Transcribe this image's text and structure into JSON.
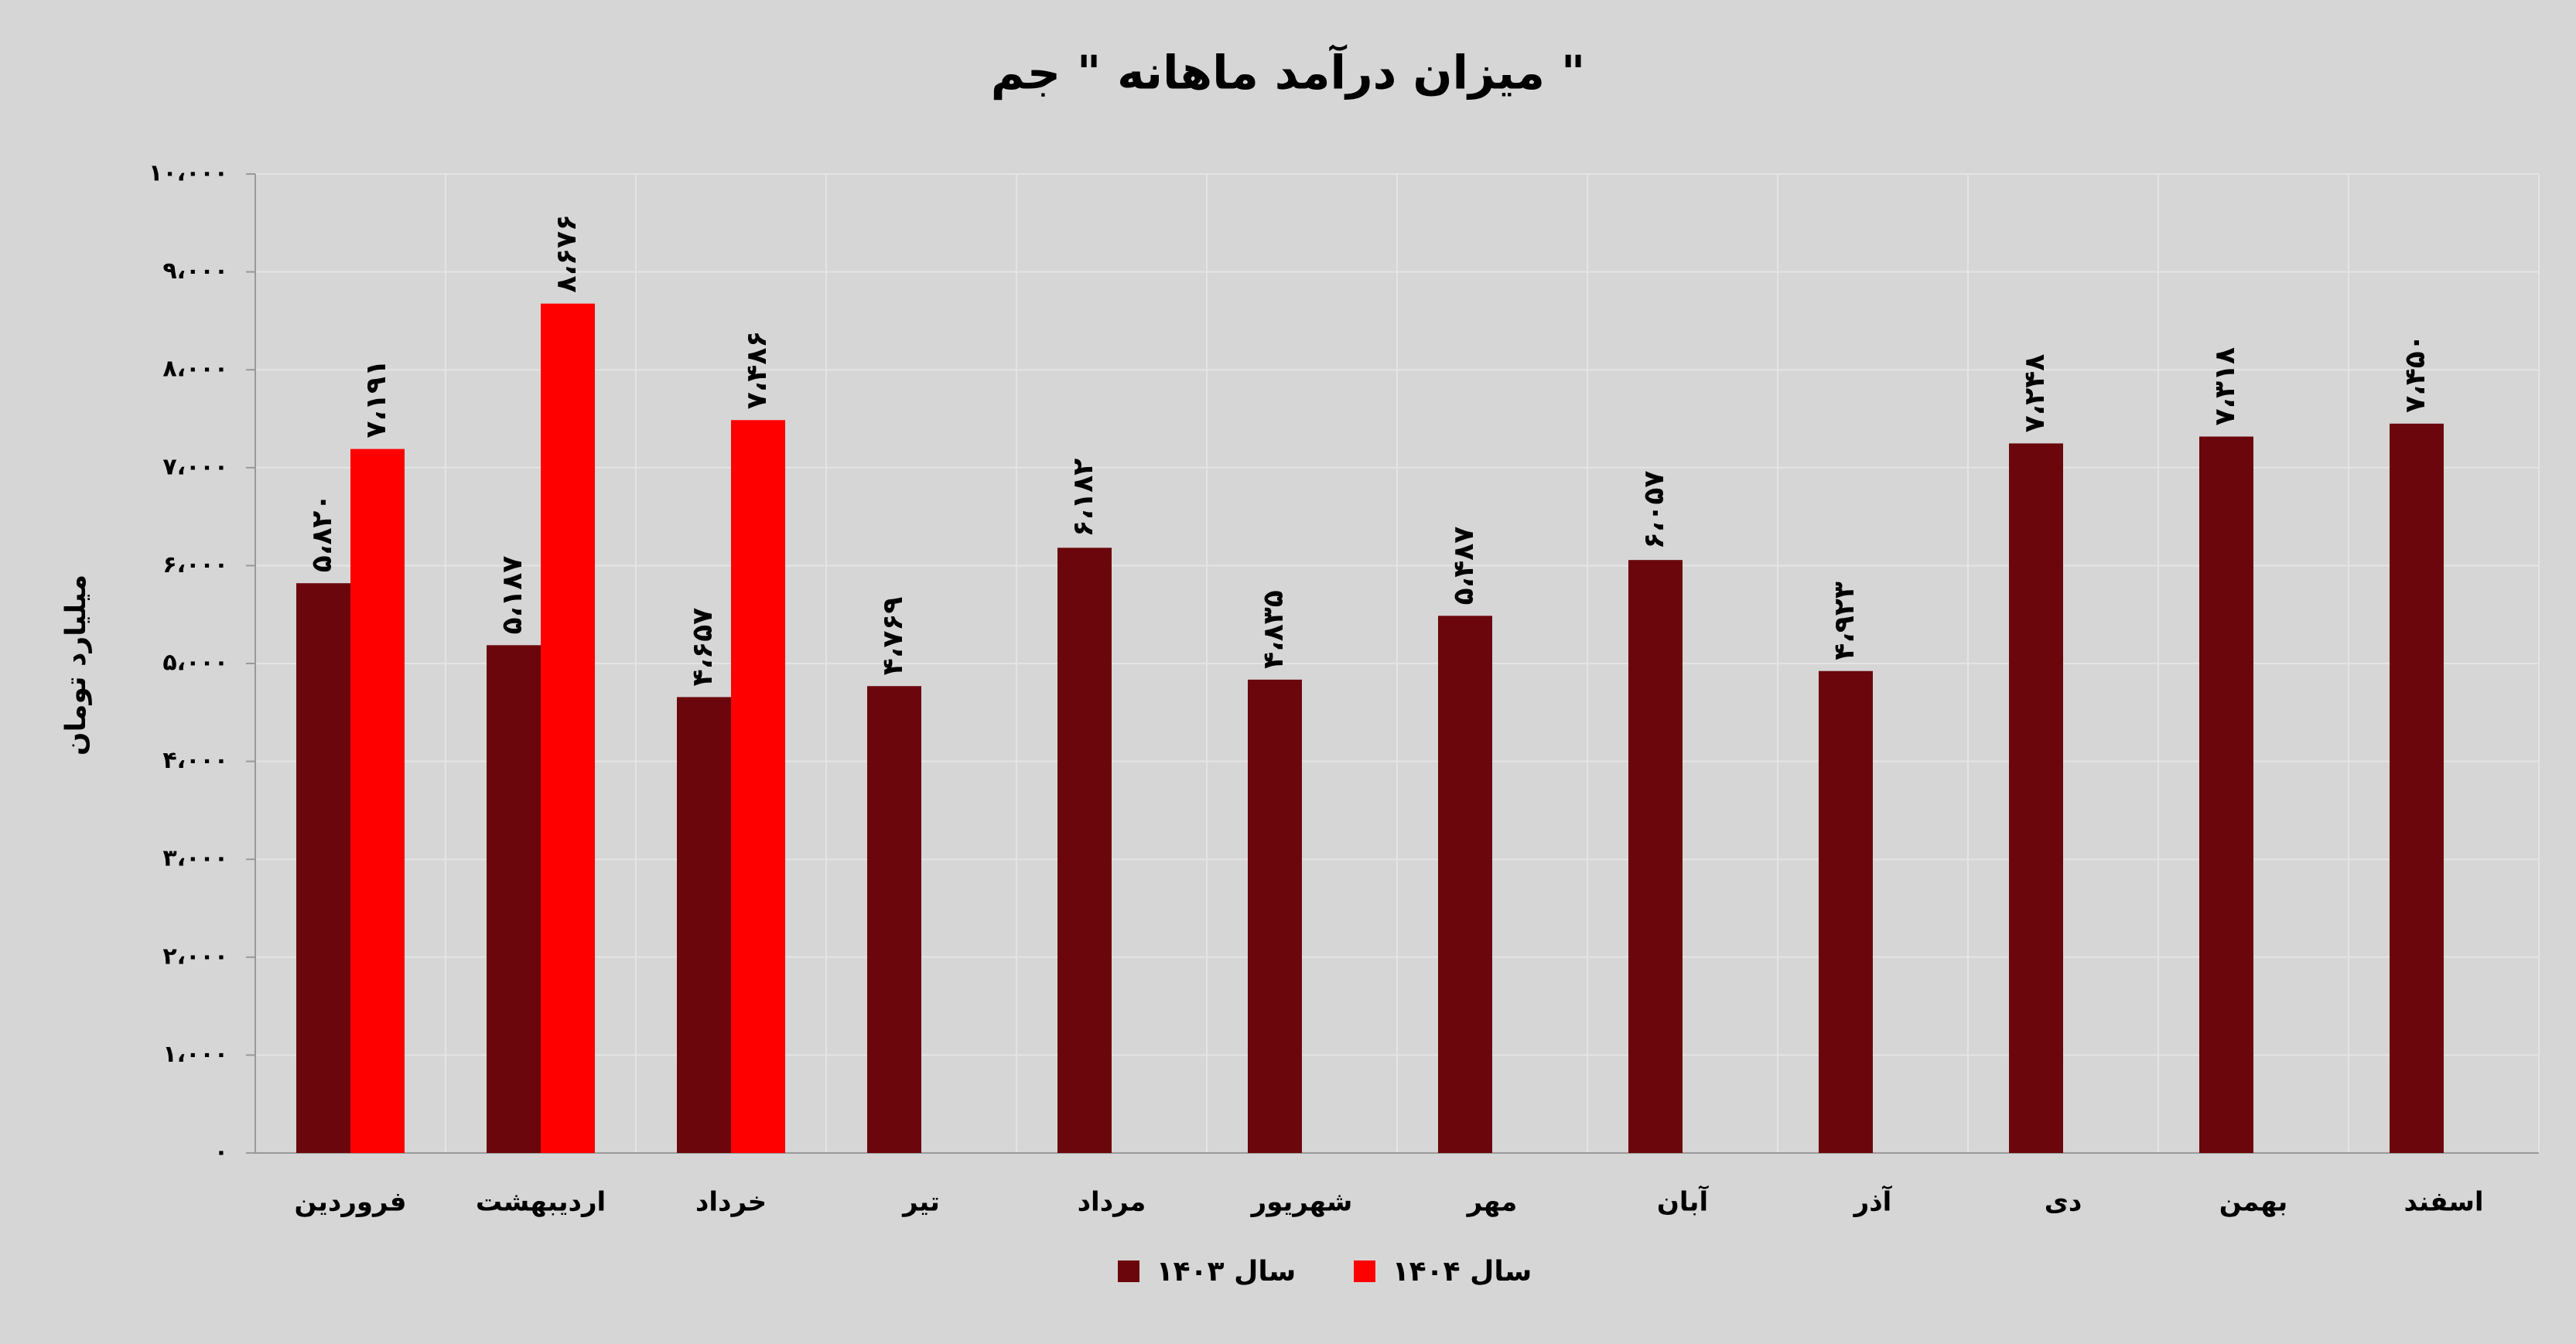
{
  "chart_data": {
    "type": "bar",
    "title": "میزان درآمد ماهانه \" جم \"",
    "y_label": "میلیارد تومان",
    "categories": [
      "فروردین",
      "اردیبهشت",
      "خرداد",
      "تیر",
      "مرداد",
      "شهریور",
      "مهر",
      "آبان",
      "آذر",
      "دی",
      "بهمن",
      "اسفند"
    ],
    "series": [
      {
        "name": "سال ۱۴۰۳",
        "color": "#6b070c",
        "values": [
          5820,
          5187,
          4657,
          4769,
          6182,
          4835,
          5487,
          6057,
          4923,
          7248,
          7318,
          7450
        ],
        "value_labels": [
          "۵،۸۲۰",
          "۵،۱۸۷",
          "۴،۶۵۷",
          "۴،۷۶۹",
          "۶،۱۸۲",
          "۴،۸۳۵",
          "۵،۴۸۷",
          "۶،۰۵۷",
          "۴،۹۲۳",
          "۷،۲۴۸",
          "۷،۳۱۸",
          "۷،۴۵۰"
        ]
      },
      {
        "name": "سال ۱۴۰۴",
        "color": "#ff0000",
        "values": [
          7191,
          8676,
          7486,
          null,
          null,
          null,
          null,
          null,
          null,
          null,
          null,
          null
        ],
        "value_labels": [
          "۷،۱۹۱",
          "۸،۶۷۶",
          "۷،۴۸۶",
          null,
          null,
          null,
          null,
          null,
          null,
          null,
          null,
          null
        ]
      }
    ],
    "ylim": [
      0,
      10000
    ],
    "yticks": [
      {
        "value": 0,
        "label": "۰"
      },
      {
        "value": 1000,
        "label": "۱،۰۰۰"
      },
      {
        "value": 2000,
        "label": "۲،۰۰۰"
      },
      {
        "value": 3000,
        "label": "۳،۰۰۰"
      },
      {
        "value": 4000,
        "label": "۴،۰۰۰"
      },
      {
        "value": 5000,
        "label": "۵،۰۰۰"
      },
      {
        "value": 6000,
        "label": "۶،۰۰۰"
      },
      {
        "value": 7000,
        "label": "۷،۰۰۰"
      },
      {
        "value": 8000,
        "label": "۸،۰۰۰"
      },
      {
        "value": 9000,
        "label": "۹،۰۰۰"
      },
      {
        "value": 10000,
        "label": "۱۰،۰۰۰"
      }
    ],
    "grid": true,
    "legend": "bottom"
  }
}
